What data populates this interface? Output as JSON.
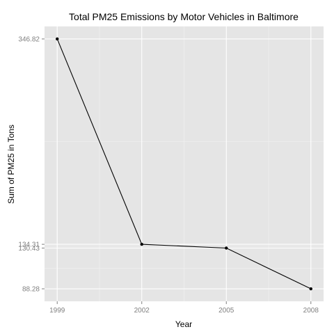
{
  "chart_data": {
    "type": "line",
    "title": "Total PM25 Emissions by Motor Vehicles in Baltimore",
    "xlabel": "Year",
    "ylabel": "Sum of PM25 in Tons",
    "x": [
      1999,
      2002,
      2005,
      2008
    ],
    "series": [
      {
        "values": [
          346.82,
          134.31,
          130.43,
          88.28
        ]
      }
    ],
    "x_ticks": [
      "1999",
      "2002",
      "2005",
      "2008"
    ],
    "y_ticks": [
      "88.28",
      "130.43",
      "134.31",
      "346.82"
    ],
    "xlim": [
      1998.55,
      2008.45
    ],
    "ylim": [
      75.35,
      359.75
    ],
    "grid": true,
    "colors": {
      "panel": "#e5e5e5",
      "grid_major": "#ffffff",
      "grid_minor": "#f2f2f2",
      "line": "#000000",
      "tick_label": "#7f7f7f",
      "title": "#000000"
    }
  }
}
